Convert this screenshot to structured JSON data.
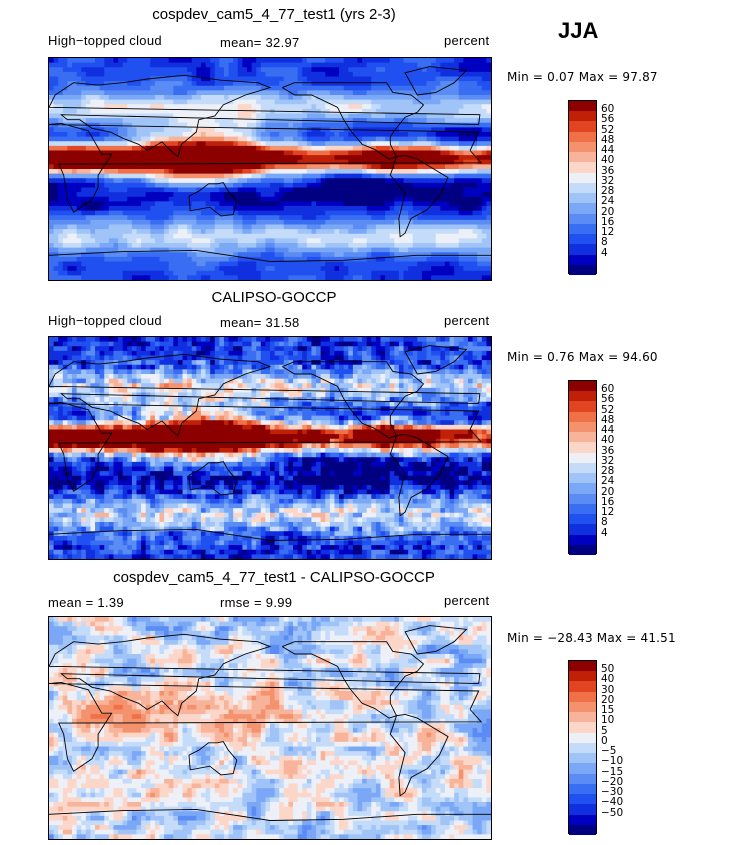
{
  "season": "JJA",
  "panels": [
    {
      "title": "cospdev_cam5_4_77_test1 (yrs 2-3)",
      "left_label": "High−topped cloud",
      "mid_label": "mean=  32.97",
      "units": "percent",
      "minmax": "Min =   0.07 Max =  97.87"
    },
    {
      "title": "CALIPSO-GOCCP",
      "left_label": "High−topped cloud",
      "mid_label": "mean=  31.58",
      "units": "percent",
      "minmax": "Min =   0.76 Max =  94.60"
    },
    {
      "title": "cospdev_cam5_4_77_test1 - CALIPSO-GOCCP",
      "left_label": "mean =   1.39",
      "mid_label": "rmse =   9.99",
      "units": "percent",
      "minmax": "Min = −28.43 Max =  41.51"
    }
  ],
  "colors": {
    "abs_scale": [
      "#000080",
      "#0000c0",
      "#1030e0",
      "#2050f0",
      "#3a6ef2",
      "#5a8cf4",
      "#7aa8f6",
      "#a0c4f8",
      "#c4dcfa",
      "#eef0f8",
      "#fcd6c8",
      "#f8b49a",
      "#f4926e",
      "#f07048",
      "#e04420",
      "#c02008",
      "#8c0000"
    ],
    "diff_scale": [
      "#000080",
      "#0000c0",
      "#1030e0",
      "#2050f0",
      "#3a6ef2",
      "#5a8cf4",
      "#7aa8f6",
      "#a0c4f8",
      "#c4dcfa",
      "#eef0f8",
      "#fcd6c8",
      "#f8b49a",
      "#f4926e",
      "#f07048",
      "#e04420",
      "#c02008",
      "#8c0000"
    ]
  },
  "chart_data": [
    {
      "type": "heatmap",
      "title": "cospdev_cam5_4_77_test1 (yrs 2-3)",
      "variable": "High−topped cloud",
      "units": "percent",
      "mean": 32.97,
      "min": 0.07,
      "max": 97.87,
      "colorbar_levels": [
        "60",
        "56",
        "52",
        "48",
        "44",
        "40",
        "36",
        "32",
        "28",
        "24",
        "20",
        "16",
        "12",
        "8",
        "4"
      ],
      "pattern": "model"
    },
    {
      "type": "heatmap",
      "title": "CALIPSO-GOCCP",
      "variable": "High−topped cloud",
      "units": "percent",
      "mean": 31.58,
      "min": 0.76,
      "max": 94.6,
      "colorbar_levels": [
        "60",
        "56",
        "52",
        "48",
        "44",
        "40",
        "36",
        "32",
        "28",
        "24",
        "20",
        "16",
        "12",
        "8",
        "4"
      ],
      "pattern": "obs"
    },
    {
      "type": "heatmap",
      "title": "cospdev_cam5_4_77_test1 - CALIPSO-GOCCP",
      "units": "percent",
      "mean": 1.39,
      "rmse": 9.99,
      "min": -28.43,
      "max": 41.51,
      "colorbar_levels": [
        "50",
        "40",
        "30",
        "20",
        "15",
        "10",
        "5",
        "0",
        "−5",
        "−10",
        "−15",
        "−20",
        "−30",
        "−40",
        "−50"
      ],
      "pattern": "diff"
    }
  ]
}
